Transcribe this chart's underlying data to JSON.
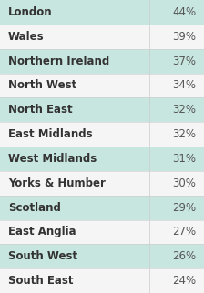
{
  "rows": [
    {
      "region": "London",
      "value": "44%",
      "shaded": true
    },
    {
      "region": "Wales",
      "value": "39%",
      "shaded": false
    },
    {
      "region": "Northern Ireland",
      "value": "37%",
      "shaded": true
    },
    {
      "region": "North West",
      "value": "34%",
      "shaded": false
    },
    {
      "region": "North East",
      "value": "32%",
      "shaded": true
    },
    {
      "region": "East Midlands",
      "value": "32%",
      "shaded": false
    },
    {
      "region": "West Midlands",
      "value": "31%",
      "shaded": true
    },
    {
      "region": "Yorks & Humber",
      "value": "30%",
      "shaded": false
    },
    {
      "region": "Scotland",
      "value": "29%",
      "shaded": true
    },
    {
      "region": "East Anglia",
      "value": "27%",
      "shaded": false
    },
    {
      "region": "South West",
      "value": "26%",
      "shaded": true
    },
    {
      "region": "South East",
      "value": "24%",
      "shaded": false
    }
  ],
  "shaded_color": "#c8e6e0",
  "unshaded_color": "#f5f5f5",
  "text_color": "#333333",
  "value_color": "#555555",
  "font_size": 8.5,
  "divider_color": "#cccccc",
  "background_color": "#f5f5f5"
}
